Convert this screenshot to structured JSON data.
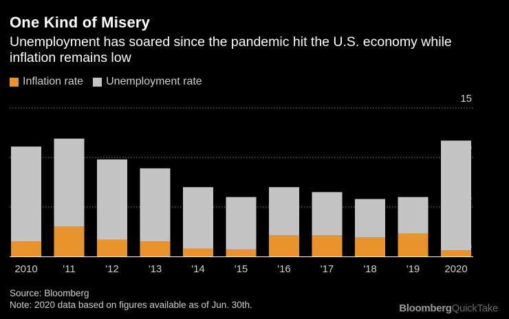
{
  "title": "One Kind of Misery",
  "subtitle": "Unemployment has soared since the pandemic hit the U.S. economy while inflation remains low",
  "legend": {
    "inflation_label": "Inflation rate",
    "unemployment_label": "Unemployment rate"
  },
  "colors": {
    "inflation": "#e8932b",
    "unemployment": "#c4c4c4",
    "grid": "#8a8a8a",
    "text": "#cfcfcf"
  },
  "chart_data": {
    "type": "bar",
    "title": "One Kind of Misery",
    "xlabel": "",
    "ylabel": "",
    "ylim": [
      0,
      15
    ],
    "yticks": [
      0,
      5,
      10,
      15
    ],
    "grid": true,
    "legend_position": "top-left",
    "stacked": true,
    "categories": [
      "2010",
      "'11",
      "'12",
      "'13",
      "'14",
      "'15",
      "'16",
      "'17",
      "'18",
      "'19",
      "2020"
    ],
    "series": [
      {
        "name": "Inflation rate",
        "values": [
          1.5,
          3.0,
          1.7,
          1.5,
          0.8,
          0.7,
          2.1,
          2.1,
          1.9,
          2.3,
          0.6
        ]
      },
      {
        "name": "Unemployment rate",
        "values": [
          9.6,
          8.9,
          8.1,
          7.4,
          6.2,
          5.3,
          4.9,
          4.4,
          3.9,
          3.7,
          11.1
        ]
      }
    ]
  },
  "footer": {
    "source": "Source: Bloomberg",
    "note": "Note: 2020 data based on figures available as of Jun. 30th."
  },
  "brand": {
    "part1": "Bloomberg",
    "part2": "QuickTake"
  }
}
